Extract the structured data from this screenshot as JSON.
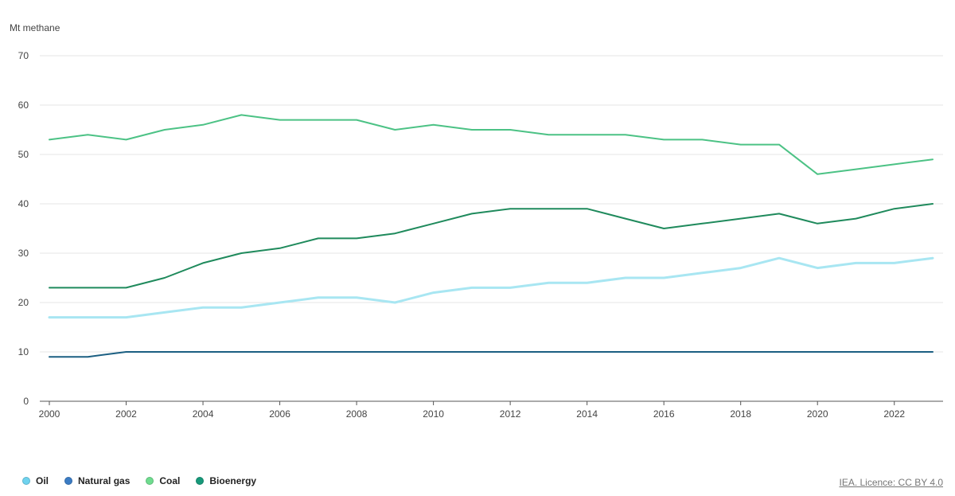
{
  "chart_data": {
    "type": "line",
    "ylabel": "Mt methane",
    "xlabel": "",
    "title": "",
    "ylim": [
      0,
      70
    ],
    "yticks": [
      0,
      10,
      20,
      30,
      40,
      50,
      60,
      70
    ],
    "xlim": [
      2000,
      2023
    ],
    "xticks": [
      2000,
      2002,
      2004,
      2006,
      2008,
      2010,
      2012,
      2014,
      2016,
      2018,
      2020,
      2022
    ],
    "grid": "horizontal",
    "legend_position": "bottom-left",
    "x": [
      2000,
      2001,
      2002,
      2003,
      2004,
      2005,
      2006,
      2007,
      2008,
      2009,
      2010,
      2011,
      2012,
      2013,
      2014,
      2015,
      2016,
      2017,
      2018,
      2019,
      2020,
      2021,
      2022,
      2023
    ],
    "series": [
      {
        "name": "Oil",
        "color": "#a8e6f2",
        "legend_color": "#6fd3ef",
        "values": [
          17,
          17,
          17,
          18,
          19,
          19,
          20,
          21,
          21,
          20,
          22,
          23,
          23,
          24,
          24,
          25,
          25,
          26,
          27,
          29,
          27,
          28,
          28,
          29
        ]
      },
      {
        "name": "Natural gas",
        "color": "#1b5f82",
        "legend_color": "#3b7cc4",
        "values": [
          9,
          9,
          10,
          10,
          10,
          10,
          10,
          10,
          10,
          10,
          10,
          10,
          10,
          10,
          10,
          10,
          10,
          10,
          10,
          10,
          10,
          10,
          10,
          10
        ]
      },
      {
        "name": "Coal",
        "color": "#4cc285",
        "legend_color": "#6fdc8f",
        "values": [
          53,
          54,
          53,
          55,
          56,
          58,
          57,
          57,
          57,
          55,
          56,
          55,
          55,
          54,
          54,
          54,
          53,
          53,
          52,
          52,
          46,
          47,
          48,
          49
        ]
      },
      {
        "name": "Bioenergy",
        "color": "#1f8a5c",
        "legend_color": "#17997a",
        "values": [
          23,
          23,
          23,
          25,
          28,
          30,
          31,
          33,
          33,
          34,
          36,
          38,
          39,
          39,
          39,
          37,
          35,
          36,
          37,
          38,
          36,
          37,
          39,
          40
        ]
      }
    ]
  },
  "credit": "IEA. Licence: CC BY 4.0"
}
